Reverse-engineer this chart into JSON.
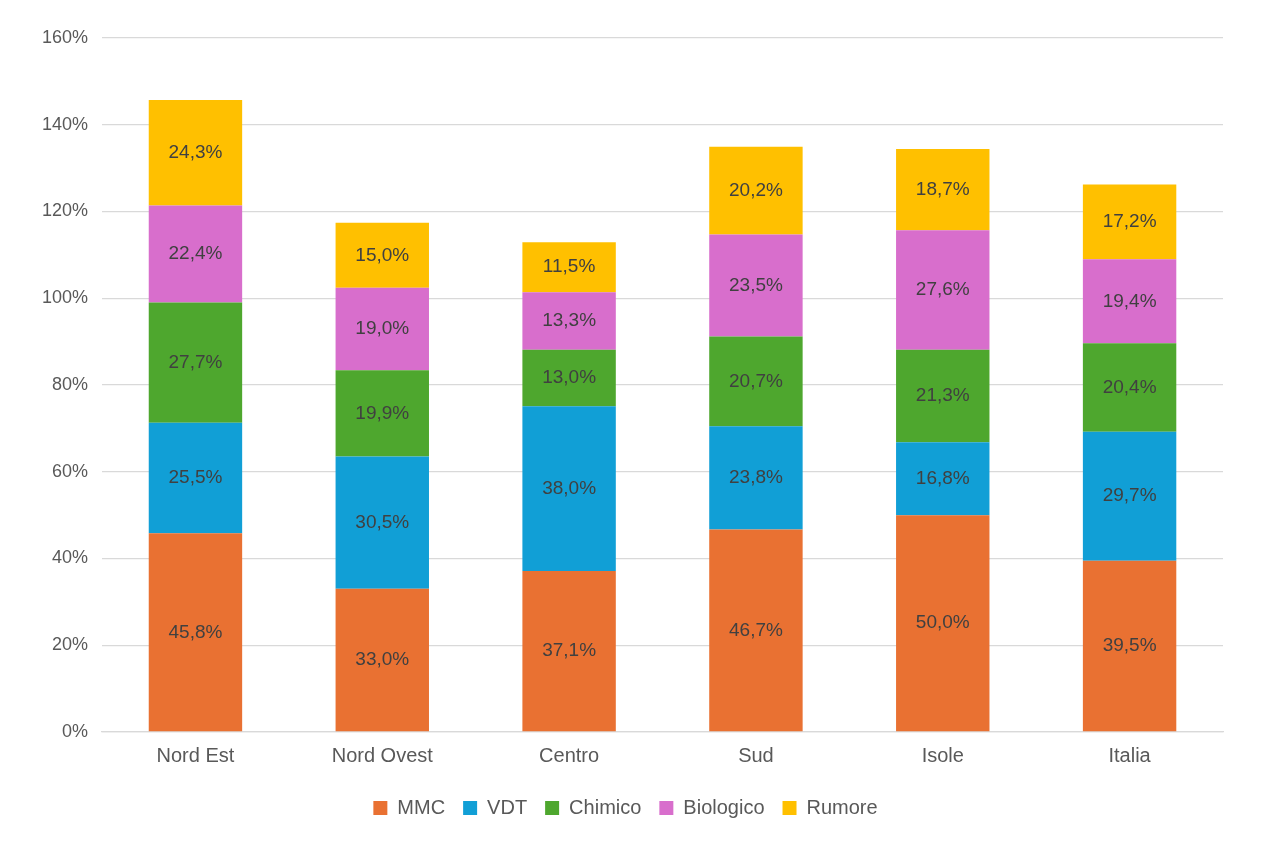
{
  "chart_data": {
    "type": "bar",
    "stacked": true,
    "categories": [
      "Nord Est",
      "Nord Ovest",
      "Centro",
      "Sud",
      "Isole",
      "Italia"
    ],
    "series": [
      {
        "name": "MMC",
        "color": "#e97132",
        "values": [
          45.8,
          33.0,
          37.1,
          46.7,
          50.0,
          39.5
        ],
        "value_labels": [
          "45,8%",
          "33,0%",
          "37,1%",
          "46,7%",
          "50,0%",
          "39,5%"
        ]
      },
      {
        "name": "VDT",
        "color": "#119fd6",
        "values": [
          25.5,
          30.5,
          38.0,
          23.8,
          16.8,
          29.7
        ],
        "value_labels": [
          "25,5%",
          "30,5%",
          "38,0%",
          "23,8%",
          "16,8%",
          "29,7%"
        ]
      },
      {
        "name": "Chimico",
        "color": "#4ea72e",
        "values": [
          27.7,
          19.9,
          13.0,
          20.7,
          21.3,
          20.4
        ],
        "value_labels": [
          "27,7%",
          "19,9%",
          "13,0%",
          "20,7%",
          "21,3%",
          "20,4%"
        ]
      },
      {
        "name": "Biologico",
        "color": "#d86ecc",
        "values": [
          22.4,
          19.0,
          13.3,
          23.5,
          27.6,
          19.4
        ],
        "value_labels": [
          "22,4%",
          "19,0%",
          "13,3%",
          "23,5%",
          "27,6%",
          "19,4%"
        ]
      },
      {
        "name": "Rumore",
        "color": "#ffc000",
        "values": [
          24.3,
          15.0,
          11.5,
          20.2,
          18.7,
          17.2
        ],
        "value_labels": [
          "24,3%",
          "15,0%",
          "11,5%",
          "20,2%",
          "18,7%",
          "17,2%"
        ]
      }
    ],
    "ylim": [
      0,
      160
    ],
    "yticks": [
      {
        "value": 0,
        "label": "0%"
      },
      {
        "value": 20,
        "label": "20%"
      },
      {
        "value": 40,
        "label": "40%"
      },
      {
        "value": 60,
        "label": "60%"
      },
      {
        "value": 80,
        "label": "80%"
      },
      {
        "value": 100,
        "label": "100%"
      },
      {
        "value": 120,
        "label": "120%"
      },
      {
        "value": 140,
        "label": "140%"
      },
      {
        "value": 160,
        "label": "160%"
      }
    ],
    "grid": "y",
    "legend": "bottom"
  }
}
